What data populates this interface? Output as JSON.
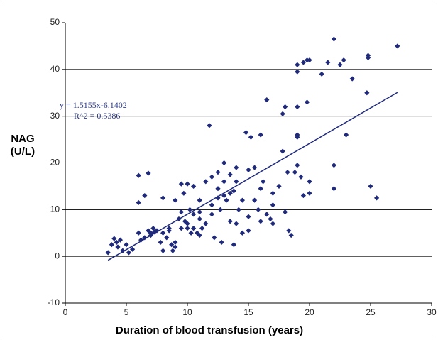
{
  "chart_data": {
    "type": "scatter",
    "x_label": "Duration of blood transfusion (years)",
    "y_label": [
      "NAG",
      "(U/L)"
    ],
    "trendline_label": [
      "y = 1.5155x-6.1402",
      "R^2 = 0.5386"
    ],
    "trendline": {
      "slope": 1.5155,
      "intercept": -6.1402,
      "x_range": [
        3.5,
        27.2
      ],
      "color": "#1f2a7a"
    },
    "color": "#1f2a7a",
    "xlim": [
      0,
      30
    ],
    "xticks": [
      0,
      5,
      10,
      15,
      20,
      25,
      30
    ],
    "ylim": [
      -10,
      50
    ],
    "yticks": [
      -10,
      0,
      10,
      20,
      30,
      40,
      50
    ],
    "grid": true,
    "x": [
      3.5,
      3.8,
      4,
      4.2,
      4.3,
      4.5,
      4.7,
      5,
      5.2,
      5.5,
      6,
      6,
      6,
      6.2,
      6.5,
      6.8,
      6.5,
      6.8,
      7,
      7.2,
      7,
      7.5,
      7.3,
      7.8,
      8,
      8,
      8,
      8.3,
      8.5,
      8.5,
      8.7,
      9,
      9,
      8.8,
      9,
      9.3,
      9.5,
      9.5,
      9.8,
      9.7,
      10,
      10,
      10.2,
      10.3,
      10.5,
      10.5,
      10.8,
      11,
      11,
      11.2,
      11,
      11.5,
      11.5,
      11.8,
      12,
      12,
      12.2,
      12.5,
      12.5,
      12.7,
      12.8,
      13,
      13,
      13.2,
      13.5,
      13.5,
      13.5,
      13.8,
      13.8,
      14,
      14,
      14.2,
      14.5,
      14.5,
      14.8,
      15,
      15,
      15.2,
      15.5,
      15.5,
      15.8,
      16,
      16,
      16.2,
      16.5,
      16.5,
      16.8,
      17,
      17,
      17.5,
      17.8,
      17.8,
      18,
      18,
      18.2,
      18.3,
      18.5,
      18.8,
      19,
      19,
      19,
      19,
      19,
      19,
      19.3,
      19.5,
      19.5,
      19.8,
      19.8,
      20,
      20,
      21,
      21.5,
      22,
      22,
      22,
      22.5,
      22.8,
      23,
      23.5,
      24.7,
      24.8,
      24.8,
      25,
      25.5,
      27.2,
      12,
      12.5,
      13,
      14,
      15,
      16,
      17,
      11,
      10,
      9.5,
      10.5,
      20
    ],
    "values": [
      0.8,
      2.5,
      3.8,
      3,
      2,
      3.5,
      1.2,
      2.5,
      0.8,
      1.5,
      17.3,
      11.5,
      5,
      3.5,
      13,
      17.8,
      4,
      5.5,
      5,
      6,
      4.5,
      5.5,
      5.2,
      3,
      1.2,
      5,
      12.5,
      4,
      5.5,
      6,
      2.5,
      2,
      3,
      1.2,
      12,
      8,
      6,
      15.5,
      7.5,
      13.5,
      7,
      15.5,
      10,
      5,
      6,
      9,
      5,
      8,
      12,
      6,
      9.5,
      7,
      16,
      28,
      17,
      9,
      4,
      18,
      14.5,
      10,
      3,
      13,
      20,
      12,
      17.5,
      13.5,
      7.5,
      2.5,
      14,
      7,
      19,
      10,
      12,
      5,
      26.5,
      8.5,
      18.5,
      25.5,
      19,
      12,
      10,
      14.5,
      26,
      16,
      9,
      33.5,
      8,
      13.5,
      11,
      15,
      30.5,
      22.5,
      32,
      9.5,
      18,
      5.5,
      4.5,
      18,
      19.5,
      25.5,
      26,
      32,
      39.5,
      41,
      17,
      13,
      41.5,
      33,
      42,
      42,
      13.5,
      39,
      41.5,
      46.5,
      19.5,
      14.5,
      41,
      42,
      26,
      38,
      35,
      42.5,
      43,
      15,
      12.5,
      45,
      11,
      12.5,
      16,
      16,
      5.5,
      7.5,
      7,
      4.5,
      6,
      9.5,
      15,
      16
    ]
  }
}
